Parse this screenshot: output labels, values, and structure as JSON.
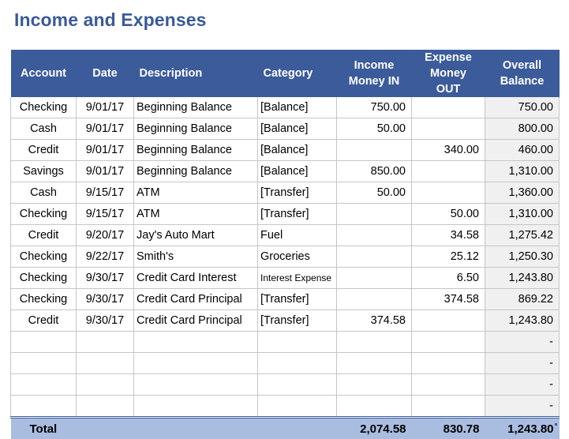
{
  "title": "Income and Expenses",
  "table": {
    "headers": [
      {
        "line1": "Account",
        "line2": ""
      },
      {
        "line1": "Date",
        "line2": ""
      },
      {
        "line1": "Description",
        "line2": ""
      },
      {
        "line1": "Category",
        "line2": ""
      },
      {
        "line1": "Income",
        "line2": "Money IN"
      },
      {
        "line1": "Expense",
        "line2": "Money OUT"
      },
      {
        "line1": "Overall",
        "line2": "Balance"
      }
    ],
    "rows": [
      {
        "account": "Checking",
        "date": "9/01/17",
        "description": "Beginning Balance",
        "category": "[Balance]",
        "income": "750.00",
        "expense": "",
        "balance": "750.00"
      },
      {
        "account": "Cash",
        "date": "9/01/17",
        "description": "Beginning Balance",
        "category": "[Balance]",
        "income": "50.00",
        "expense": "",
        "balance": "800.00"
      },
      {
        "account": "Credit",
        "date": "9/01/17",
        "description": "Beginning Balance",
        "category": "[Balance]",
        "income": "",
        "expense": "340.00",
        "balance": "460.00"
      },
      {
        "account": "Savings",
        "date": "9/01/17",
        "description": "Beginning Balance",
        "category": "[Balance]",
        "income": "850.00",
        "expense": "",
        "balance": "1,310.00"
      },
      {
        "account": "Cash",
        "date": "9/15/17",
        "description": "ATM",
        "category": "[Transfer]",
        "income": "50.00",
        "expense": "",
        "balance": "1,360.00"
      },
      {
        "account": "Checking",
        "date": "9/15/17",
        "description": "ATM",
        "category": "[Transfer]",
        "income": "",
        "expense": "50.00",
        "balance": "1,310.00"
      },
      {
        "account": "Credit",
        "date": "9/20/17",
        "description": "Jay's Auto Mart",
        "category": "Fuel",
        "income": "",
        "expense": "34.58",
        "balance": "1,275.42"
      },
      {
        "account": "Checking",
        "date": "9/22/17",
        "description": "Smith's",
        "category": "Groceries",
        "income": "",
        "expense": "25.12",
        "balance": "1,250.30"
      },
      {
        "account": "Checking",
        "date": "9/30/17",
        "description": "Credit Card Interest",
        "category": "Interest Expense",
        "income": "",
        "expense": "6.50",
        "balance": "1,243.80"
      },
      {
        "account": "Checking",
        "date": "9/30/17",
        "description": "Credit Card Principal",
        "category": "[Transfer]",
        "income": "",
        "expense": "374.58",
        "balance": "869.22"
      },
      {
        "account": "Credit",
        "date": "9/30/17",
        "description": "Credit Card Principal",
        "category": "[Transfer]",
        "income": "374.58",
        "expense": "",
        "balance": "1,243.80"
      },
      {
        "account": "",
        "date": "",
        "description": "",
        "category": "",
        "income": "",
        "expense": "",
        "balance": "-"
      },
      {
        "account": "",
        "date": "",
        "description": "",
        "category": "",
        "income": "",
        "expense": "",
        "balance": "-"
      },
      {
        "account": "",
        "date": "",
        "description": "",
        "category": "",
        "income": "",
        "expense": "",
        "balance": "-"
      },
      {
        "account": "",
        "date": "",
        "description": "",
        "category": "",
        "income": "",
        "expense": "",
        "balance": "-"
      }
    ],
    "total": {
      "label": "Total",
      "income": "2,074.58",
      "expense": "830.78",
      "balance": "1,243.80"
    }
  },
  "colors": {
    "header_bg": "#3b5b9b",
    "title": "#3a5a98",
    "total_bg": "#a9bde0",
    "balance_bg": "#f0f0f0"
  }
}
